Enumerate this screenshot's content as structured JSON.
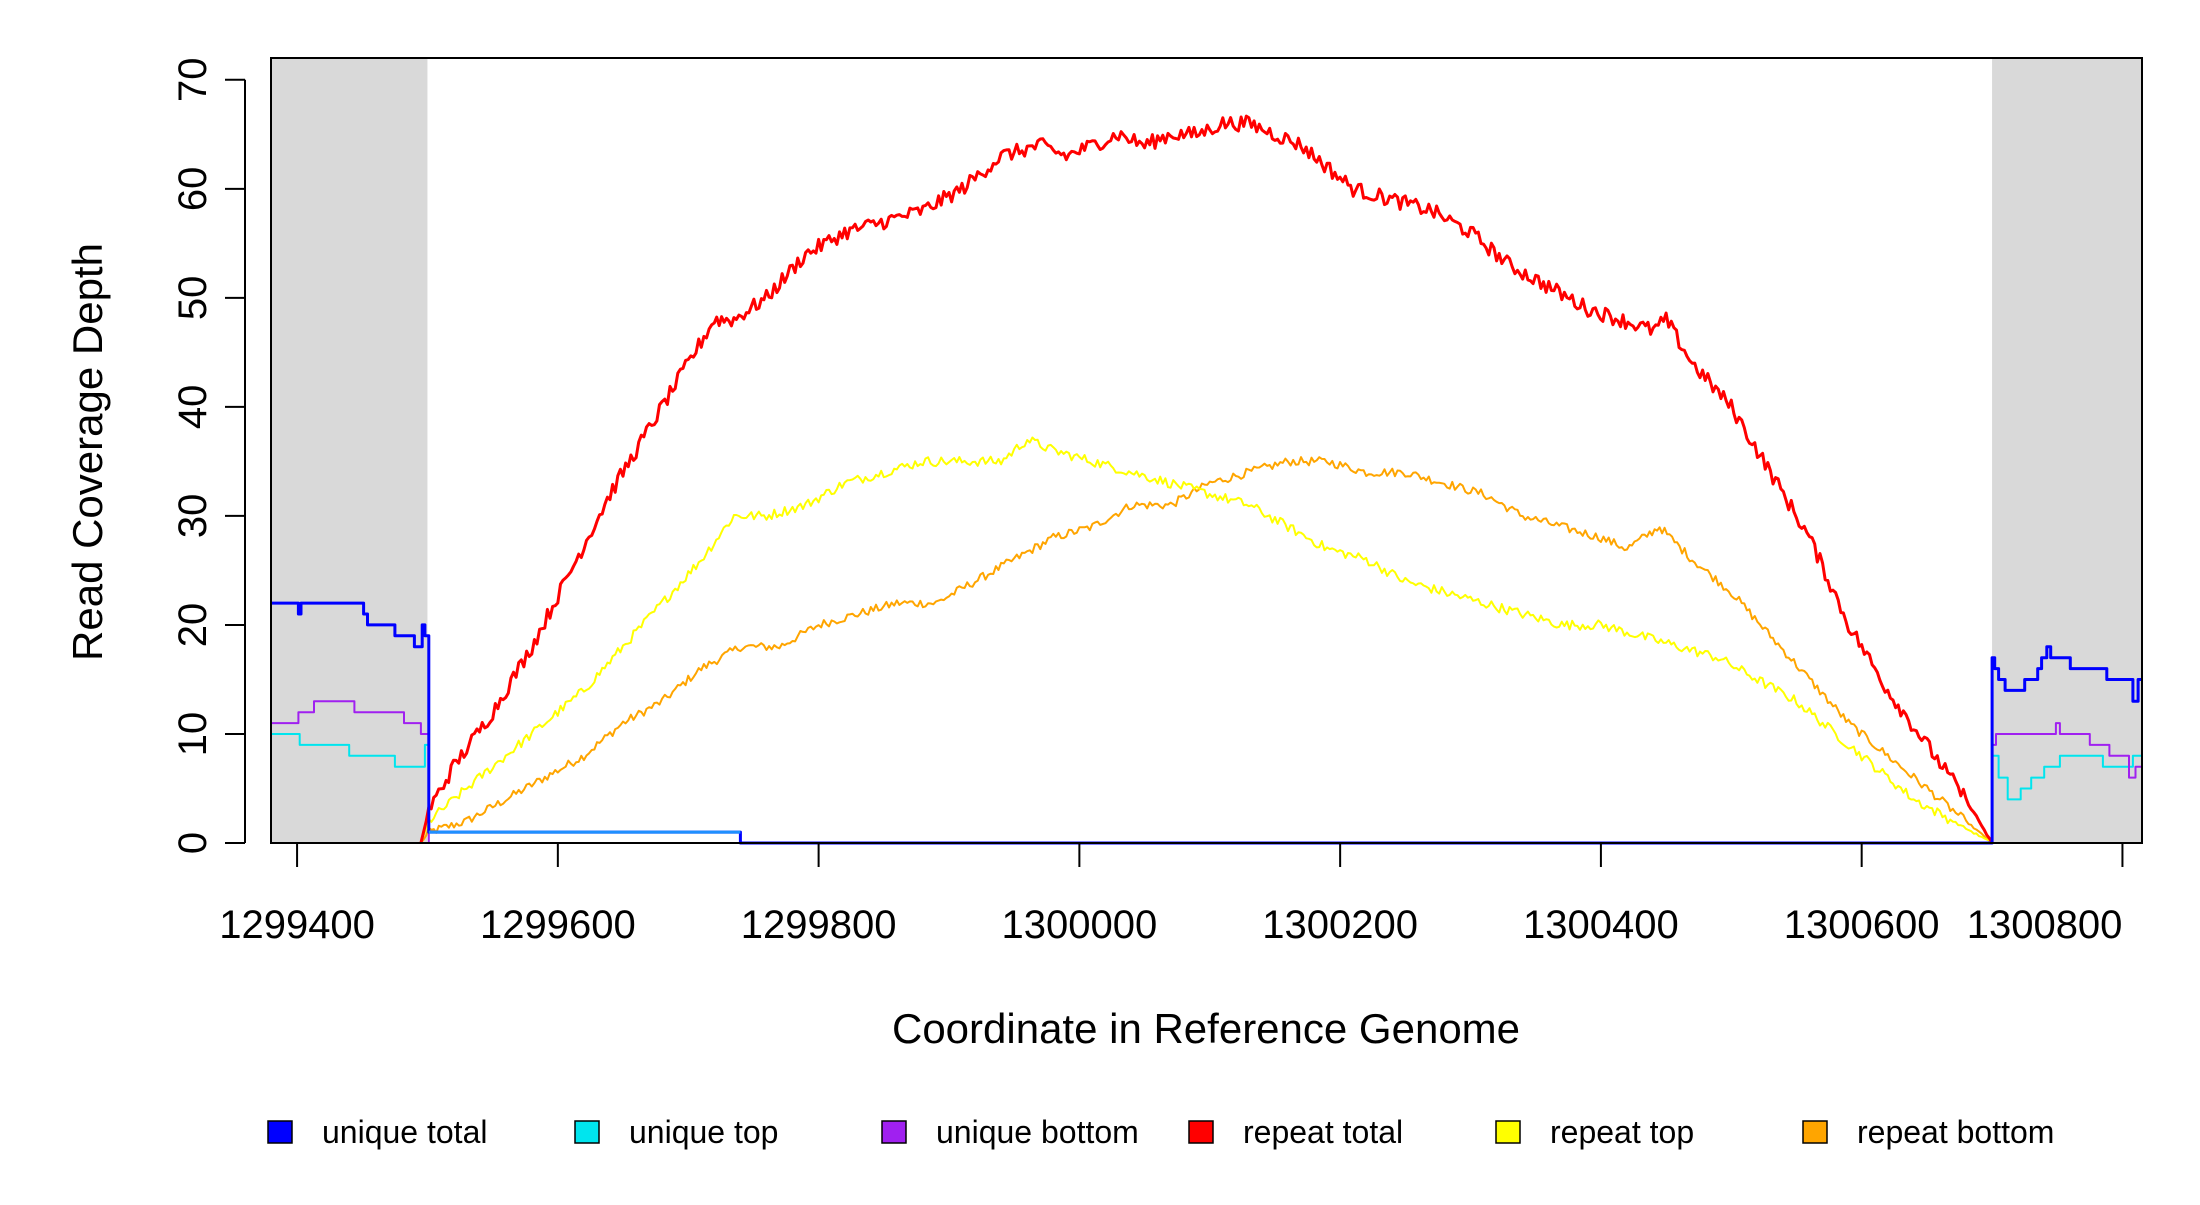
{
  "chart_data": {
    "type": "line",
    "title": "",
    "xlabel": "Coordinate in Reference Genome",
    "ylabel": "Read Coverage Depth",
    "xlim": [
      1299380,
      1300815
    ],
    "ylim": [
      0,
      72
    ],
    "x_ticks": [
      1299400,
      1299600,
      1299800,
      1300000,
      1300200,
      1300400,
      1300600,
      1300800
    ],
    "x_tick_labels": [
      "1299400",
      "1299600",
      "1299800",
      "1300000",
      "1300200",
      "1300400",
      "1300600",
      "1300800"
    ],
    "y_ticks": [
      0,
      10,
      20,
      30,
      40,
      50,
      60,
      70
    ],
    "y_tick_labels": [
      "0",
      "10",
      "20",
      "30",
      "40",
      "50",
      "60",
      "70"
    ],
    "grid": false,
    "legend_position": "bottom",
    "shaded_regions": [
      {
        "x0": 1299380,
        "x1": 1299500,
        "color": "#d9d9d9"
      },
      {
        "x0": 1300700,
        "x1": 1300815,
        "color": "#d9d9d9"
      }
    ],
    "series": [
      {
        "name": "unique total",
        "color": "#0000ff",
        "step": true,
        "width": 3,
        "x": [
          1299380,
          1299401,
          1299403,
          1299420,
          1299451,
          1299454,
          1299475,
          1299490,
          1299496,
          1299498,
          1299501,
          1299740,
          1300700,
          1300702,
          1300705,
          1300710,
          1300725,
          1300735,
          1300738,
          1300742,
          1300745,
          1300758,
          1300760,
          1300788,
          1300808,
          1300812,
          1300815
        ],
        "y": [
          22,
          21,
          22,
          22,
          21,
          20,
          19,
          18,
          20,
          19,
          1,
          0,
          17,
          16,
          15,
          14,
          15,
          16,
          17,
          18,
          17,
          17,
          16,
          15,
          13,
          15,
          15
        ]
      },
      {
        "name": "unique top",
        "color": "#00e5ee",
        "step": true,
        "width": 2,
        "x": [
          1299380,
          1299402,
          1299440,
          1299475,
          1299498,
          1299501,
          1299740,
          1300700,
          1300705,
          1300712,
          1300722,
          1300730,
          1300740,
          1300752,
          1300768,
          1300785,
          1300802,
          1300808,
          1300815
        ],
        "y": [
          10,
          9,
          8,
          7,
          9,
          1,
          0,
          8,
          6,
          4,
          5,
          6,
          7,
          8,
          8,
          7,
          7,
          8,
          8
        ],
        "x_end": 1300815
      },
      {
        "name": "unique bottom",
        "color": "#a020f0",
        "step": true,
        "width": 2,
        "x": [
          1299380,
          1299401,
          1299413,
          1299444,
          1299482,
          1299495,
          1299501,
          1300700,
          1300703,
          1300715,
          1300749,
          1300752,
          1300762,
          1300775,
          1300790,
          1300805,
          1300810,
          1300815
        ],
        "y": [
          11,
          12,
          13,
          12,
          11,
          10,
          0,
          9,
          10,
          10,
          11,
          10,
          10,
          9,
          8,
          6,
          7,
          7
        ]
      },
      {
        "name": "repeat total",
        "color": "#ff0000",
        "width": 3,
        "x": [
          1299495,
          1299501,
          1299520,
          1299550,
          1299580,
          1299610,
          1299640,
          1299670,
          1299700,
          1299720,
          1299735,
          1299760,
          1299790,
          1299820,
          1299850,
          1299880,
          1299910,
          1299940,
          1299970,
          1299990,
          1300010,
          1300030,
          1300050,
          1300070,
          1300090,
          1300110,
          1300130,
          1300150,
          1300170,
          1300190,
          1300210,
          1300240,
          1300270,
          1300300,
          1300330,
          1300360,
          1300390,
          1300415,
          1300440,
          1300450,
          1300470,
          1300500,
          1300530,
          1300560,
          1300590,
          1300620,
          1300650,
          1300680,
          1300700
        ],
        "y": [
          0,
          3,
          7,
          12,
          18,
          25,
          32,
          38,
          44,
          48,
          48,
          50,
          54,
          56,
          57,
          58,
          60,
          63,
          64,
          63,
          64,
          65,
          64,
          65,
          65,
          66,
          66,
          65,
          64,
          62,
          60,
          59,
          58,
          56,
          53,
          51,
          49,
          48,
          47,
          48,
          44,
          40,
          34,
          28,
          20,
          14,
          9,
          4,
          0
        ],
        "noise": 0.7
      },
      {
        "name": "repeat top",
        "color": "#ffff00",
        "width": 2,
        "x": [
          1299495,
          1299501,
          1299530,
          1299560,
          1299590,
          1299620,
          1299650,
          1299680,
          1299710,
          1299735,
          1299760,
          1299790,
          1299820,
          1299850,
          1299880,
          1299910,
          1299940,
          1299960,
          1299980,
          1300010,
          1300040,
          1300070,
          1300100,
          1300130,
          1300160,
          1300190,
          1300220,
          1300250,
          1300280,
          1300310,
          1300340,
          1300370,
          1300400,
          1300430,
          1300460,
          1300490,
          1300520,
          1300550,
          1300580,
          1300610,
          1300640,
          1300670,
          1300700
        ],
        "y": [
          0,
          2,
          5,
          8,
          11,
          14,
          18,
          22,
          26,
          30,
          30,
          31,
          33,
          34,
          35,
          35,
          35,
          37,
          36,
          35,
          34,
          33,
          32,
          31,
          29,
          27,
          26,
          24,
          23,
          22,
          21,
          20,
          20,
          19,
          18,
          17,
          15,
          13,
          10,
          7,
          4,
          2,
          0
        ],
        "noise": 0.45
      },
      {
        "name": "repeat bottom",
        "color": "#ffa500",
        "width": 2,
        "x": [
          1299495,
          1299501,
          1299530,
          1299560,
          1299590,
          1299620,
          1299650,
          1299680,
          1299710,
          1299740,
          1299770,
          1299800,
          1299830,
          1299860,
          1299890,
          1299920,
          1299950,
          1299980,
          1300010,
          1300040,
          1300070,
          1300100,
          1300130,
          1300160,
          1300190,
          1300220,
          1300250,
          1300280,
          1300310,
          1300340,
          1300370,
          1300400,
          1300420,
          1300445,
          1300470,
          1300500,
          1300530,
          1300560,
          1300590,
          1300620,
          1300650,
          1300680,
          1300700
        ],
        "y": [
          0,
          1,
          2,
          4,
          6,
          8,
          11,
          13,
          16,
          18,
          18,
          20,
          21,
          22,
          22,
          24,
          26,
          28,
          29,
          31,
          31,
          33,
          34,
          35,
          35,
          34,
          34,
          33,
          32,
          30,
          29,
          28,
          27,
          29,
          26,
          23,
          19,
          15,
          11,
          8,
          5,
          2,
          0
        ],
        "noise": 0.4
      }
    ]
  }
}
